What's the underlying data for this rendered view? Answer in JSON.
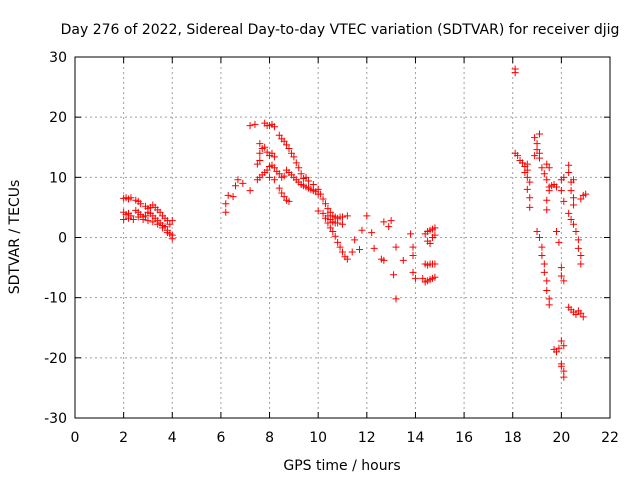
{
  "chart_data": {
    "type": "scatter",
    "title": "Day 276 of 2022, Sidereal Day-to-day VTEC variation (SDTVAR) for receiver djig",
    "xlabel": "GPS time / hours",
    "ylabel": "SDTVAR / TECUs",
    "xlim": [
      0,
      22
    ],
    "ylim": [
      -30,
      30
    ],
    "xticks": [
      "0",
      "2",
      "4",
      "6",
      "8",
      "10",
      "12",
      "14",
      "16",
      "18",
      "20",
      "22"
    ],
    "yticks": [
      "30",
      "20",
      "10",
      "0",
      "-10",
      "-20",
      "-30"
    ],
    "grid": true,
    "marker": "plus",
    "color": "#ff0000",
    "series": [
      {
        "name": "SDTVAR",
        "points": [
          [
            2.0,
            6.5
          ],
          [
            2.1,
            6.6
          ],
          [
            2.2,
            6.4
          ],
          [
            2.3,
            6.6
          ],
          [
            2.5,
            6.2
          ],
          [
            2.6,
            6.0
          ],
          [
            2.7,
            5.6
          ],
          [
            2.9,
            5.2
          ],
          [
            3.0,
            4.8
          ],
          [
            3.1,
            5.0
          ],
          [
            3.2,
            5.4
          ],
          [
            3.3,
            5.0
          ],
          [
            3.4,
            4.6
          ],
          [
            3.5,
            4.2
          ],
          [
            3.6,
            3.6
          ],
          [
            3.7,
            3.2
          ],
          [
            3.8,
            2.8
          ],
          [
            3.9,
            2.2
          ],
          [
            4.0,
            2.8
          ],
          [
            2.0,
            4.2
          ],
          [
            2.1,
            3.8
          ],
          [
            2.2,
            4.0
          ],
          [
            2.3,
            3.6
          ],
          [
            2.5,
            4.5
          ],
          [
            2.6,
            4.2
          ],
          [
            2.7,
            3.8
          ],
          [
            2.8,
            3.4
          ],
          [
            2.9,
            3.6
          ],
          [
            3.0,
            4.2
          ],
          [
            3.1,
            4.0
          ],
          [
            3.2,
            3.6
          ],
          [
            3.3,
            3.2
          ],
          [
            3.4,
            2.8
          ],
          [
            3.5,
            2.4
          ],
          [
            3.6,
            2.0
          ],
          [
            3.7,
            1.8
          ],
          [
            3.8,
            1.2
          ],
          [
            3.9,
            0.6
          ],
          [
            4.0,
            -0.2
          ],
          [
            2.0,
            3.0
          ],
          [
            2.2,
            3.2
          ],
          [
            2.4,
            3.0
          ],
          [
            2.6,
            3.4
          ],
          [
            2.8,
            3.0
          ],
          [
            3.0,
            2.8
          ],
          [
            3.2,
            2.6
          ],
          [
            3.4,
            2.2
          ],
          [
            3.6,
            1.6
          ],
          [
            3.8,
            0.8
          ],
          [
            4.0,
            0.4
          ],
          [
            6.2,
            4.2
          ],
          [
            6.2,
            5.6
          ],
          [
            6.3,
            7.0
          ],
          [
            6.5,
            6.8
          ],
          [
            6.6,
            8.6
          ],
          [
            6.7,
            9.6
          ],
          [
            6.9,
            9.0
          ],
          [
            7.2,
            7.8
          ],
          [
            7.2,
            18.6
          ],
          [
            7.4,
            18.8
          ],
          [
            7.5,
            12.2
          ],
          [
            7.6,
            12.8
          ],
          [
            7.6,
            14.0
          ],
          [
            7.7,
            14.8
          ],
          [
            7.8,
            19.0
          ],
          [
            7.9,
            18.6
          ],
          [
            7.5,
            9.6
          ],
          [
            7.6,
            10.0
          ],
          [
            7.7,
            10.4
          ],
          [
            7.8,
            10.8
          ],
          [
            7.9,
            11.2
          ],
          [
            8.0,
            11.8
          ],
          [
            8.1,
            12.0
          ],
          [
            8.2,
            11.6
          ],
          [
            8.3,
            11.0
          ],
          [
            8.4,
            10.6
          ],
          [
            8.5,
            10.0
          ],
          [
            8.6,
            10.2
          ],
          [
            8.7,
            11.2
          ],
          [
            8.8,
            10.8
          ],
          [
            8.9,
            10.4
          ],
          [
            9.0,
            10.0
          ],
          [
            9.1,
            9.6
          ],
          [
            9.2,
            9.2
          ],
          [
            9.3,
            8.8
          ],
          [
            9.4,
            8.6
          ],
          [
            9.5,
            8.4
          ],
          [
            9.6,
            8.2
          ],
          [
            9.7,
            8.0
          ],
          [
            9.8,
            7.8
          ],
          [
            9.9,
            7.6
          ],
          [
            10.0,
            7.2
          ],
          [
            8.0,
            18.6
          ],
          [
            8.1,
            18.8
          ],
          [
            8.2,
            18.4
          ],
          [
            8.4,
            17.0
          ],
          [
            8.5,
            16.4
          ],
          [
            8.6,
            16.0
          ],
          [
            8.7,
            15.4
          ],
          [
            8.8,
            14.8
          ],
          [
            8.9,
            14.0
          ],
          [
            9.0,
            13.4
          ],
          [
            9.1,
            12.4
          ],
          [
            9.2,
            11.6
          ],
          [
            9.3,
            10.6
          ],
          [
            9.4,
            9.8
          ],
          [
            7.6,
            15.6
          ],
          [
            7.8,
            15.0
          ],
          [
            7.9,
            14.2
          ],
          [
            8.0,
            13.6
          ],
          [
            8.1,
            14.0
          ],
          [
            8.2,
            13.4
          ],
          [
            8.0,
            10.0
          ],
          [
            8.2,
            9.6
          ],
          [
            8.4,
            8.2
          ],
          [
            8.5,
            7.4
          ],
          [
            8.6,
            6.8
          ],
          [
            8.7,
            6.2
          ],
          [
            8.8,
            6.0
          ],
          [
            9.5,
            10.0
          ],
          [
            9.6,
            9.4
          ],
          [
            9.8,
            8.8
          ],
          [
            10.0,
            8.0
          ],
          [
            10.1,
            7.2
          ],
          [
            10.2,
            6.4
          ],
          [
            10.3,
            5.6
          ],
          [
            10.4,
            4.8
          ],
          [
            10.5,
            4.2
          ],
          [
            10.6,
            3.6
          ],
          [
            10.7,
            3.4
          ],
          [
            10.8,
            3.2
          ],
          [
            10.9,
            3.4
          ],
          [
            11.0,
            3.4
          ],
          [
            11.2,
            3.6
          ],
          [
            10.0,
            4.4
          ],
          [
            10.2,
            4.0
          ],
          [
            10.3,
            3.2
          ],
          [
            10.4,
            2.4
          ],
          [
            10.5,
            1.6
          ],
          [
            10.6,
            1.0
          ],
          [
            10.7,
            0.2
          ],
          [
            10.8,
            -0.8
          ],
          [
            10.9,
            -1.6
          ],
          [
            11.0,
            -2.4
          ],
          [
            11.1,
            -3.2
          ],
          [
            11.2,
            -3.6
          ],
          [
            10.4,
            3.6
          ],
          [
            10.5,
            3.0
          ],
          [
            10.6,
            2.6
          ],
          [
            10.7,
            2.4
          ],
          [
            10.8,
            2.4
          ],
          [
            11.0,
            2.2
          ],
          [
            11.4,
            -2.4
          ],
          [
            11.5,
            -0.4
          ],
          [
            11.7,
            -2.0
          ],
          [
            11.8,
            1.2
          ],
          [
            12.0,
            3.6
          ],
          [
            12.2,
            0.8
          ],
          [
            12.3,
            -1.8
          ],
          [
            12.6,
            -3.6
          ],
          [
            12.7,
            -3.8
          ],
          [
            12.7,
            2.6
          ],
          [
            12.9,
            1.8
          ],
          [
            13.0,
            2.8
          ],
          [
            13.1,
            -6.2
          ],
          [
            13.2,
            -10.2
          ],
          [
            13.2,
            -1.6
          ],
          [
            13.5,
            -3.8
          ],
          [
            13.8,
            0.6
          ],
          [
            13.9,
            -3.0
          ],
          [
            13.9,
            -5.8
          ],
          [
            14.0,
            -6.8
          ],
          [
            13.9,
            -1.6
          ],
          [
            14.3,
            -6.8
          ],
          [
            14.4,
            -7.4
          ],
          [
            14.5,
            -7.2
          ],
          [
            14.6,
            -7.0
          ],
          [
            14.7,
            -6.8
          ],
          [
            14.8,
            -6.6
          ],
          [
            14.4,
            -4.4
          ],
          [
            14.5,
            -4.6
          ],
          [
            14.6,
            -4.4
          ],
          [
            14.7,
            -4.4
          ],
          [
            14.8,
            -4.4
          ],
          [
            14.4,
            0.6
          ],
          [
            14.5,
            1.0
          ],
          [
            14.6,
            1.2
          ],
          [
            14.7,
            1.4
          ],
          [
            14.8,
            1.6
          ],
          [
            14.5,
            -0.6
          ],
          [
            14.6,
            -1.0
          ],
          [
            14.7,
            0.0
          ],
          [
            14.8,
            0.4
          ],
          [
            18.1,
            27.4
          ],
          [
            18.1,
            28.0
          ],
          [
            18.1,
            14.0
          ],
          [
            18.2,
            13.6
          ],
          [
            18.3,
            12.8
          ],
          [
            18.4,
            12.4
          ],
          [
            18.5,
            11.8
          ],
          [
            18.6,
            11.2
          ],
          [
            18.6,
            10.0
          ],
          [
            18.7,
            9.2
          ],
          [
            18.6,
            8.0
          ],
          [
            18.7,
            6.6
          ],
          [
            18.7,
            5.0
          ],
          [
            18.6,
            12.2
          ],
          [
            18.5,
            10.8
          ],
          [
            18.9,
            13.6
          ],
          [
            18.9,
            16.6
          ],
          [
            19.0,
            15.6
          ],
          [
            19.0,
            14.6
          ],
          [
            19.1,
            14.0
          ],
          [
            19.1,
            13.2
          ],
          [
            19.1,
            17.2
          ],
          [
            19.2,
            11.6
          ],
          [
            19.3,
            10.6
          ],
          [
            19.4,
            9.6
          ],
          [
            19.4,
            12.2
          ],
          [
            19.5,
            11.6
          ],
          [
            19.5,
            8.4
          ],
          [
            19.0,
            1.0
          ],
          [
            19.1,
            0.0
          ],
          [
            19.2,
            -1.6
          ],
          [
            19.2,
            -3.0
          ],
          [
            19.3,
            -4.4
          ],
          [
            19.3,
            -5.8
          ],
          [
            19.4,
            -7.2
          ],
          [
            19.4,
            -8.8
          ],
          [
            19.5,
            -10.2
          ],
          [
            19.5,
            -11.2
          ],
          [
            19.4,
            4.6
          ],
          [
            19.4,
            6.2
          ],
          [
            19.5,
            7.8
          ],
          [
            19.6,
            8.6
          ],
          [
            19.7,
            8.8
          ],
          [
            19.8,
            8.4
          ],
          [
            19.8,
            1.0
          ],
          [
            19.9,
            -0.8
          ],
          [
            19.7,
            -18.6
          ],
          [
            19.8,
            -19.0
          ],
          [
            19.9,
            -18.4
          ],
          [
            20.0,
            9.6
          ],
          [
            20.1,
            10.0
          ],
          [
            20.0,
            7.8
          ],
          [
            20.1,
            6.0
          ],
          [
            20.0,
            -5.0
          ],
          [
            20.0,
            -6.4
          ],
          [
            20.1,
            -7.2
          ],
          [
            20.0,
            -17.2
          ],
          [
            20.1,
            -18.0
          ],
          [
            20.0,
            -21.4
          ],
          [
            20.1,
            -22.2
          ],
          [
            20.1,
            -23.2
          ],
          [
            20.0,
            -21.0
          ],
          [
            20.3,
            12.0
          ],
          [
            20.3,
            10.8
          ],
          [
            20.4,
            9.2
          ],
          [
            20.4,
            7.8
          ],
          [
            20.5,
            6.6
          ],
          [
            20.5,
            5.4
          ],
          [
            20.3,
            4.0
          ],
          [
            20.4,
            3.0
          ],
          [
            20.5,
            2.2
          ],
          [
            20.6,
            1.0
          ],
          [
            20.7,
            -0.4
          ],
          [
            20.7,
            -1.8
          ],
          [
            20.8,
            -3.0
          ],
          [
            20.8,
            -4.4
          ],
          [
            20.5,
            9.6
          ],
          [
            20.3,
            -11.6
          ],
          [
            20.4,
            -12.0
          ],
          [
            20.5,
            -12.4
          ],
          [
            20.6,
            -12.8
          ],
          [
            20.7,
            -12.2
          ],
          [
            20.8,
            -12.6
          ],
          [
            20.9,
            -13.2
          ],
          [
            20.8,
            6.4
          ],
          [
            20.9,
            7.0
          ],
          [
            21.0,
            7.2
          ]
        ]
      }
    ]
  }
}
